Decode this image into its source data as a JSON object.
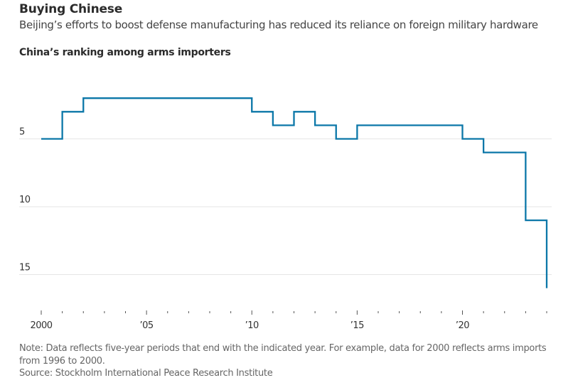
{
  "header": {
    "title": "Buying Chinese",
    "subtitle": "Beijing’s efforts to boost defense manufacturing has reduced its reliance on foreign military hardware",
    "chart_title": "China’s ranking among arms importers"
  },
  "footer": {
    "note": "Note: Data reflects five-year periods that end with the indicated year. For example, data for 2000 reflects arms imports from 1996 to 2000.",
    "source": "Source: Stockholm International Peace Research Institute"
  },
  "colors": {
    "line": "#0b77a8",
    "grid": "#e6e6e6",
    "tick": "#555555",
    "label": "#333333"
  },
  "chart_data": {
    "type": "line",
    "step": "post",
    "title": "China’s ranking among arms importers",
    "xlabel": "",
    "ylabel": "",
    "y_inverted": true,
    "xlim": [
      2000,
      2024
    ],
    "ylim": [
      16,
      0
    ],
    "grid": true,
    "y_ticks": [
      5,
      10,
      15
    ],
    "y_tick_labels": [
      "5",
      "10",
      "15"
    ],
    "x_major_ticks": [
      2000,
      2005,
      2010,
      2015,
      2020
    ],
    "x_tick_labels": [
      "2000",
      "’05",
      "’10",
      "’15",
      "’20"
    ],
    "x_minor_ticks": [
      2001,
      2002,
      2003,
      2004,
      2006,
      2007,
      2008,
      2009,
      2011,
      2012,
      2013,
      2014,
      2016,
      2017,
      2018,
      2019,
      2021,
      2022,
      2023,
      2024
    ],
    "series": [
      {
        "name": "China’s ranking",
        "x": [
          2000,
          2001,
          2002,
          2003,
          2004,
          2005,
          2006,
          2007,
          2008,
          2009,
          2010,
          2011,
          2012,
          2013,
          2014,
          2015,
          2016,
          2017,
          2018,
          2019,
          2020,
          2021,
          2022,
          2023,
          2024
        ],
        "values": [
          5,
          3,
          2,
          2,
          2,
          2,
          2,
          2,
          2,
          2,
          3,
          4,
          3,
          4,
          5,
          4,
          4,
          4,
          4,
          4,
          5,
          6,
          6,
          11,
          16
        ]
      }
    ]
  }
}
